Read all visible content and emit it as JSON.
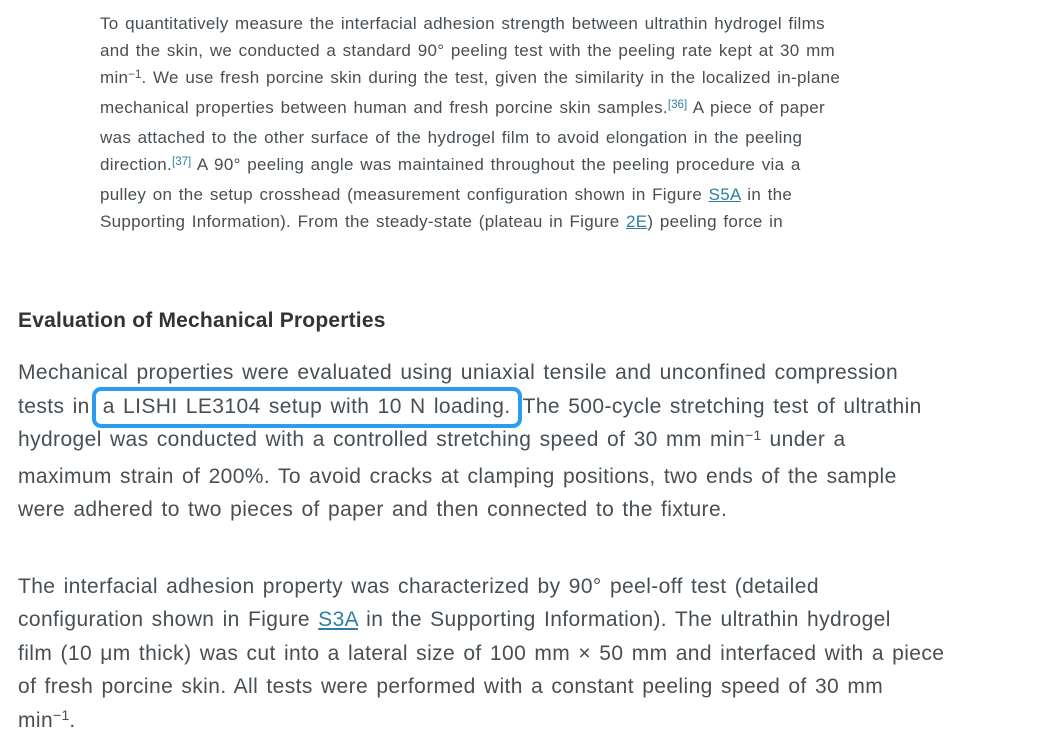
{
  "colors": {
    "background": "#ffffff",
    "body_text": "#484f54",
    "heading_text": "#333333",
    "link": "#2e7f9f",
    "highlight_box": "#2b9cf2"
  },
  "heading": {
    "text": "Evaluation of Mechanical Properties"
  },
  "paragraphs": {
    "quote_paragraph": {
      "lines": [
        {
          "segments": [
            {
              "type": "text",
              "text": "To quantitatively measure the interfacial adhesion strength between ultrathin hydrogel films"
            }
          ]
        },
        {
          "segments": [
            {
              "type": "text",
              "text": "and the skin, we conducted a standard 90° peeling test with the peeling rate kept at 30 mm"
            }
          ]
        },
        {
          "segments": [
            {
              "type": "text",
              "text": "min"
            },
            {
              "type": "sup",
              "text": "−1"
            },
            {
              "type": "text",
              "text": ". We use fresh porcine skin during the test, given the similarity in the localized in-plane"
            }
          ]
        },
        {
          "segments": [
            {
              "type": "text",
              "text": "mechanical properties between human and fresh porcine skin samples."
            },
            {
              "type": "cite",
              "text": "[36]"
            },
            {
              "type": "text",
              "text": " A piece of paper"
            }
          ]
        },
        {
          "segments": [
            {
              "type": "text",
              "text": "was attached to the other surface of the hydrogel film to avoid elongation in the peeling"
            }
          ]
        },
        {
          "segments": [
            {
              "type": "text",
              "text": "direction."
            },
            {
              "type": "cite",
              "text": "[37]"
            },
            {
              "type": "text",
              "text": " A 90° peeling angle was maintained throughout the peeling procedure via a"
            }
          ]
        },
        {
          "segments": [
            {
              "type": "text",
              "text": "pulley on the setup crosshead (measurement configuration shown in Figure "
            },
            {
              "type": "link",
              "text": "S5A"
            },
            {
              "type": "text",
              "text": " in the"
            }
          ]
        },
        {
          "segments": [
            {
              "type": "text",
              "text": "Supporting Information). From the steady-state (plateau in Figure "
            },
            {
              "type": "link",
              "text": "2E"
            },
            {
              "type": "text",
              "text": ") peeling force in"
            }
          ]
        }
      ]
    },
    "mechanical_paragraph": {
      "lines": [
        {
          "segments": [
            {
              "type": "text",
              "text": "Mechanical properties were evaluated using uniaxial tensile and unconfined compression"
            }
          ]
        },
        {
          "segments": [
            {
              "type": "text",
              "text": "tests in"
            },
            {
              "type": "box",
              "text": "a LISHI LE3104 setup with 10 N loading."
            },
            {
              "type": "text",
              "text": "The 500-cycle stretching test of ultrathin"
            }
          ]
        },
        {
          "segments": [
            {
              "type": "text",
              "text": "hydrogel was conducted with a controlled stretching speed of 30 mm min"
            },
            {
              "type": "sup",
              "text": "−1"
            },
            {
              "type": "text",
              "text": " under a"
            }
          ]
        },
        {
          "segments": [
            {
              "type": "text",
              "text": "maximum strain of 200%. To avoid cracks at clamping positions, two ends of the sample"
            }
          ]
        },
        {
          "segments": [
            {
              "type": "text",
              "text": "were adhered to two pieces of paper and then connected to the fixture."
            }
          ]
        }
      ]
    },
    "adhesion_paragraph": {
      "lines": [
        {
          "segments": [
            {
              "type": "text",
              "text": "The interfacial adhesion property was characterized by 90° peel-off test (detailed"
            }
          ]
        },
        {
          "segments": [
            {
              "type": "text",
              "text": "configuration shown in Figure "
            },
            {
              "type": "link",
              "text": "S3A"
            },
            {
              "type": "text",
              "text": " in the Supporting Information). The ultrathin hydrogel"
            }
          ]
        },
        {
          "segments": [
            {
              "type": "text",
              "text": "film (10 μm thick) was cut into a lateral size of 100 mm × 50 mm and interfaced with a piece"
            }
          ]
        },
        {
          "segments": [
            {
              "type": "text",
              "text": "of fresh porcine skin. All tests were performed with a constant peeling speed of 30 mm"
            }
          ]
        },
        {
          "segments": [
            {
              "type": "text",
              "text": "min"
            },
            {
              "type": "sup",
              "text": "−1"
            },
            {
              "type": "text",
              "text": "."
            }
          ]
        }
      ]
    }
  }
}
